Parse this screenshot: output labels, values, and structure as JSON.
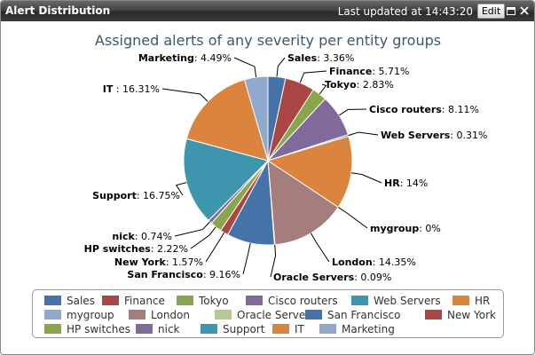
{
  "window": {
    "title": "Alert Distribution",
    "last_updated": "Last updated at 14:43:20",
    "edit_label": "Edit"
  },
  "chart_data": {
    "type": "pie",
    "title": "Assigned alerts of any severity per entity groups",
    "legend_position": "bottom",
    "slices": [
      {
        "name": "Sales",
        "value": 3.36,
        "label": "3.36%",
        "color": "#4572a7"
      },
      {
        "name": "Finance",
        "value": 5.71,
        "label": "5.71%",
        "color": "#aa4643"
      },
      {
        "name": "Tokyo",
        "value": 2.83,
        "label": "2.83%",
        "color": "#89a54e"
      },
      {
        "name": "Cisco routers",
        "value": 8.11,
        "label": "8.11%",
        "color": "#80699b"
      },
      {
        "name": "Web Servers",
        "value": 0.31,
        "label": "0.31%",
        "color": "#3d96ae"
      },
      {
        "name": "HR",
        "value": 14,
        "label": "14%",
        "color": "#db843d"
      },
      {
        "name": "mygroup",
        "value": 0,
        "label": "0%",
        "color": "#92a8cd"
      },
      {
        "name": "London",
        "value": 14.35,
        "label": "14.35%",
        "color": "#a47d7c"
      },
      {
        "name": "Oracle Servers",
        "value": 0.09,
        "label": "0.09%",
        "color": "#b5ca92"
      },
      {
        "name": "San Francisco",
        "value": 9.16,
        "label": "9.16%",
        "color": "#4572a7"
      },
      {
        "name": "New York",
        "value": 1.57,
        "label": "1.57%",
        "color": "#aa4643"
      },
      {
        "name": "HP switches",
        "value": 2.22,
        "label": "2.22%",
        "color": "#89a54e"
      },
      {
        "name": "nick",
        "value": 0.74,
        "label": "0.74%",
        "color": "#80699b"
      },
      {
        "name": "Support",
        "value": 16.75,
        "label": "16.75%",
        "color": "#3d96ae"
      },
      {
        "name": "IT",
        "value": 16.31,
        "label": "16.31%",
        "color": "#db843d",
        "label_sep": " : "
      },
      {
        "name": "Marketing",
        "value": 4.49,
        "label": "4.49%",
        "color": "#92a8cd"
      }
    ]
  }
}
